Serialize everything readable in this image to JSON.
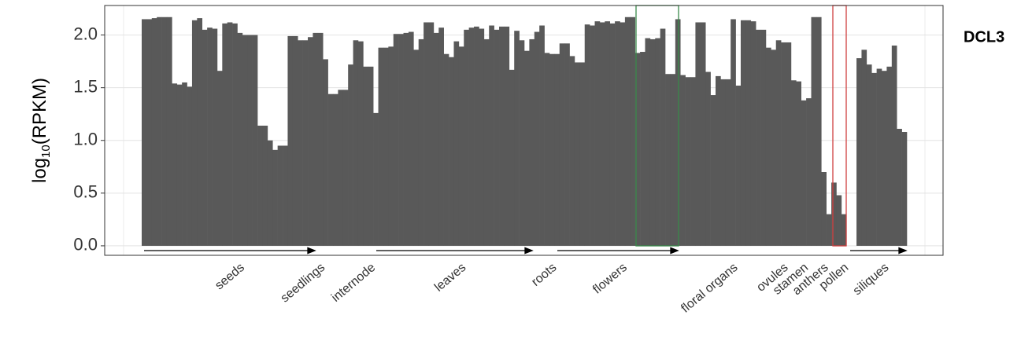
{
  "chart_data": {
    "type": "bar",
    "title": "DCL3",
    "y_label": {
      "base": "log",
      "subscript": "10",
      "rest": "(RPKM)"
    },
    "color": "#595959",
    "ylim": [
      -0.09,
      2.28
    ],
    "yticks": [
      {
        "value": 0,
        "label": "0.0"
      },
      {
        "value": 0.5,
        "label": "0.5"
      },
      {
        "value": 1,
        "label": "1.0"
      },
      {
        "value": 1.5,
        "label": "1.5"
      },
      {
        "value": 2,
        "label": "2.0"
      }
    ],
    "grid": true,
    "values": [
      2.15,
      2.15,
      2.16,
      2.17,
      2.17,
      2.17,
      1.54,
      1.53,
      1.55,
      1.51,
      2.14,
      2.16,
      2.05,
      2.07,
      2.06,
      1.66,
      2.11,
      2.12,
      2.11,
      2.02,
      2.0,
      2.0,
      2.0,
      1.14,
      1.14,
      1.0,
      0.91,
      0.95,
      0.95,
      1.99,
      1.99,
      1.95,
      1.95,
      1.98,
      2.02,
      2.02,
      1.77,
      1.44,
      1.44,
      1.48,
      1.48,
      1.72,
      1.95,
      1.94,
      1.7,
      1.7,
      1.26,
      1.88,
      1.88,
      1.89,
      2.01,
      2.01,
      2.02,
      2.03,
      1.86,
      1.96,
      2.12,
      2.12,
      2.02,
      2.07,
      1.82,
      1.79,
      1.94,
      1.89,
      2.05,
      2.07,
      2.08,
      2.06,
      1.96,
      2.09,
      2.05,
      2.08,
      2.08,
      1.67,
      2.04,
      1.95,
      1.85,
      1.96,
      2.03,
      2.09,
      1.83,
      1.82,
      1.82,
      1.92,
      1.92,
      1.8,
      1.74,
      1.74,
      2.1,
      2.09,
      2.13,
      2.12,
      2.13,
      2.11,
      2.13,
      2.12,
      2.17,
      2.17,
      1.83,
      1.84,
      1.97,
      1.96,
      1.97,
      2.06,
      1.63,
      1.63,
      2.15,
      1.62,
      1.6,
      1.6,
      2.12,
      2.12,
      1.65,
      1.43,
      1.61,
      1.58,
      1.58,
      2.15,
      1.52,
      2.14,
      2.14,
      2.13,
      2.05,
      2.05,
      1.88,
      1.86,
      1.95,
      1.93,
      1.93,
      1.57,
      1.56,
      1.38,
      1.4,
      2.17,
      2.17,
      0.7,
      0.3,
      0.6,
      0.48,
      0.3,
      0,
      0,
      1.78,
      1.86,
      1.72,
      1.64,
      1.68,
      1.66,
      1.7,
      1.9,
      1.11,
      1.08
    ],
    "categories": [
      null,
      null,
      null,
      null,
      null,
      null,
      null,
      null,
      null,
      null,
      null,
      null,
      null,
      null,
      null,
      null,
      null,
      null,
      null,
      "seeds",
      null,
      null,
      null,
      null,
      null,
      null,
      null,
      null,
      null,
      null,
      null,
      null,
      null,
      null,
      null,
      "seedlings",
      null,
      null,
      null,
      null,
      null,
      null,
      null,
      null,
      null,
      "internode",
      null,
      null,
      null,
      null,
      null,
      null,
      null,
      null,
      null,
      null,
      null,
      null,
      null,
      null,
      null,
      null,
      null,
      "leaves",
      null,
      null,
      null,
      null,
      null,
      null,
      null,
      null,
      null,
      null,
      null,
      null,
      null,
      null,
      null,
      null,
      null,
      "roots",
      null,
      null,
      null,
      null,
      null,
      null,
      null,
      null,
      null,
      null,
      null,
      null,
      null,
      "flowers",
      null,
      null,
      null,
      null,
      null,
      null,
      null,
      null,
      null,
      null,
      null,
      null,
      null,
      null,
      null,
      null,
      null,
      null,
      null,
      null,
      null,
      "floral organs",
      null,
      null,
      null,
      null,
      null,
      null,
      null,
      null,
      null,
      "ovules",
      null,
      null,
      null,
      "stamen",
      null,
      null,
      null,
      "anthers",
      null,
      null,
      null,
      "pollen",
      null,
      null,
      null,
      null,
      null,
      null,
      null,
      "siliques",
      null,
      null,
      null,
      null
    ]
  }
}
